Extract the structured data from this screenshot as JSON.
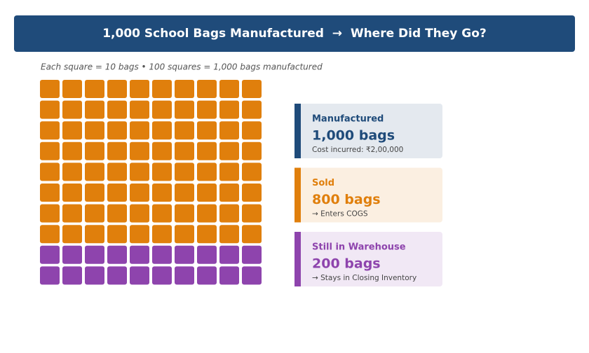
{
  "chart_data": {
    "type": "waffle",
    "title": "1,000 School Bags Manufactured  →  Where Did They Go?",
    "subtitle": "Each square = 10 bags  •  100 squares = 1,000 bags manufactured",
    "unit": 10,
    "total": {
      "name": "Manufactured",
      "value": 1000,
      "value_label": "1,000 bags",
      "note": "Cost incurred: ₹2,00,000",
      "color": "#1f4b7a"
    },
    "series": [
      {
        "name": "Sold",
        "value": 800,
        "value_label": "800 bags",
        "note": "→ Enters COGS",
        "color": "#e07f0c"
      },
      {
        "name": "Still in Warehouse",
        "value": 200,
        "value_label": "200 bags",
        "note": "→ Stays in Closing Inventory",
        "color": "#8e44ad"
      }
    ]
  }
}
